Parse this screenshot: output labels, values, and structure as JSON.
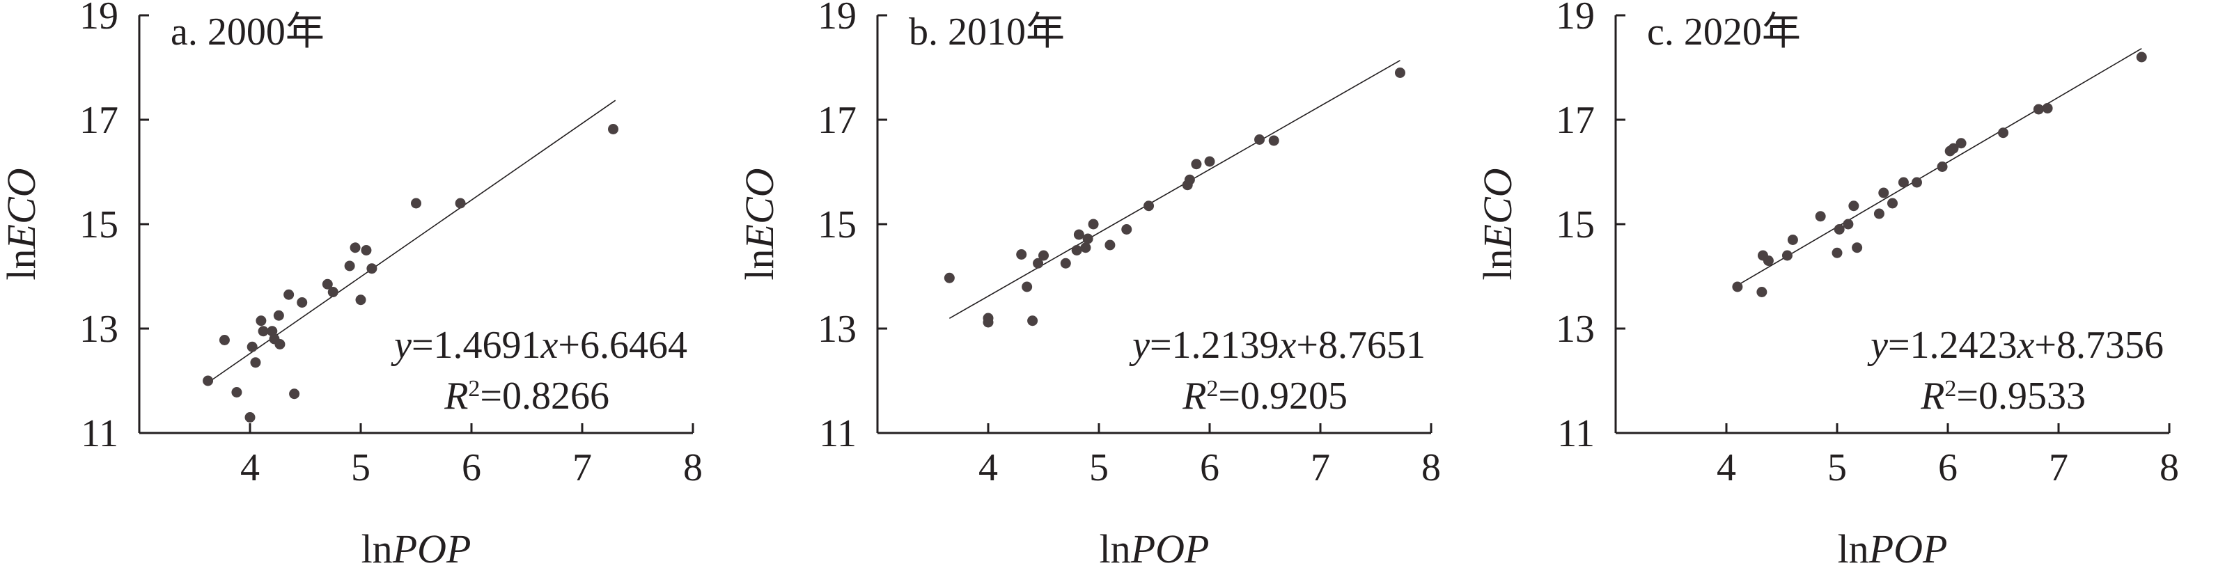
{
  "figure": {
    "axis_color": "#231f20",
    "point_color": "#4a4142",
    "line_color": "#231f20",
    "eq_operator": "=",
    "r2_label": "R",
    "r2_sup": "2"
  },
  "chart_data": [
    {
      "type": "scatter",
      "title": "a. 2000年",
      "xlabel_prefix": "ln",
      "xlabel_var": "POP",
      "ylabel_prefix": "ln",
      "ylabel_var": "ECO",
      "xlim": [
        3,
        8
      ],
      "ylim": [
        11,
        19
      ],
      "xticks": [
        4,
        5,
        6,
        7,
        8
      ],
      "yticks": [
        11,
        13,
        15,
        17,
        19
      ],
      "grid": false,
      "regression": {
        "slope": 1.4691,
        "intercept": 6.6464,
        "x_range": [
          3.6,
          7.3
        ]
      },
      "equation_y": "y",
      "equation_x": "x",
      "equation_slope": "1.4691",
      "equation_tail": "+6.6464",
      "r2_value": "0.8266",
      "points": [
        [
          3.62,
          12.0
        ],
        [
          3.77,
          12.78
        ],
        [
          3.88,
          11.78
        ],
        [
          4.0,
          11.3
        ],
        [
          4.02,
          12.65
        ],
        [
          4.05,
          12.35
        ],
        [
          4.1,
          13.15
        ],
        [
          4.12,
          12.95
        ],
        [
          4.2,
          12.95
        ],
        [
          4.22,
          12.8
        ],
        [
          4.26,
          13.25
        ],
        [
          4.27,
          12.7
        ],
        [
          4.35,
          13.65
        ],
        [
          4.4,
          11.75
        ],
        [
          4.47,
          13.5
        ],
        [
          4.7,
          13.85
        ],
        [
          4.75,
          13.7
        ],
        [
          4.9,
          14.2
        ],
        [
          4.95,
          14.55
        ],
        [
          5.0,
          13.55
        ],
        [
          5.05,
          14.5
        ],
        [
          5.1,
          14.15
        ],
        [
          5.5,
          15.4
        ],
        [
          5.9,
          15.4
        ],
        [
          7.28,
          16.82
        ]
      ]
    },
    {
      "type": "scatter",
      "title": "b. 2010年",
      "xlabel_prefix": "ln",
      "xlabel_var": "POP",
      "ylabel_prefix": "ln",
      "ylabel_var": "ECO",
      "xlim": [
        3,
        8
      ],
      "ylim": [
        11,
        19
      ],
      "xticks": [
        4,
        5,
        6,
        7,
        8
      ],
      "yticks": [
        11,
        13,
        15,
        17,
        19
      ],
      "grid": false,
      "regression": {
        "slope": 1.2139,
        "intercept": 8.7651,
        "x_range": [
          3.65,
          7.72
        ]
      },
      "equation_y": "y",
      "equation_x": "x",
      "equation_slope": "1.2139",
      "equation_tail": "+8.7651",
      "r2_value": "0.9205",
      "points": [
        [
          3.65,
          13.97
        ],
        [
          4.0,
          13.2
        ],
        [
          4.0,
          13.12
        ],
        [
          4.3,
          14.42
        ],
        [
          4.35,
          13.8
        ],
        [
          4.4,
          13.15
        ],
        [
          4.45,
          14.25
        ],
        [
          4.5,
          14.4
        ],
        [
          4.7,
          14.25
        ],
        [
          4.8,
          14.5
        ],
        [
          4.82,
          14.8
        ],
        [
          4.88,
          14.55
        ],
        [
          4.9,
          14.72
        ],
        [
          4.95,
          15.0
        ],
        [
          5.1,
          14.6
        ],
        [
          5.25,
          14.9
        ],
        [
          5.45,
          15.35
        ],
        [
          5.8,
          15.75
        ],
        [
          5.82,
          15.85
        ],
        [
          5.88,
          16.15
        ],
        [
          6.0,
          16.2
        ],
        [
          6.45,
          16.62
        ],
        [
          6.58,
          16.6
        ],
        [
          7.72,
          17.9
        ]
      ]
    },
    {
      "type": "scatter",
      "title": "c. 2020年",
      "xlabel_prefix": "ln",
      "xlabel_var": "POP",
      "ylabel_prefix": "ln",
      "ylabel_var": "ECO",
      "xlim": [
        3,
        8
      ],
      "ylim": [
        11,
        19
      ],
      "xticks": [
        4,
        5,
        6,
        7,
        8
      ],
      "yticks": [
        11,
        13,
        15,
        17,
        19
      ],
      "grid": false,
      "regression": {
        "slope": 1.2423,
        "intercept": 8.7356,
        "x_range": [
          4.1,
          7.75
        ]
      },
      "equation_y": "y",
      "equation_x": "x",
      "equation_slope": "1.2423",
      "equation_tail": "+8.7356",
      "r2_value": "0.9533",
      "points": [
        [
          4.1,
          13.8
        ],
        [
          4.32,
          13.7
        ],
        [
          4.33,
          14.4
        ],
        [
          4.38,
          14.3
        ],
        [
          4.55,
          14.4
        ],
        [
          4.6,
          14.7
        ],
        [
          4.85,
          15.15
        ],
        [
          5.0,
          14.45
        ],
        [
          5.02,
          14.9
        ],
        [
          5.1,
          15.0
        ],
        [
          5.15,
          15.35
        ],
        [
          5.18,
          14.55
        ],
        [
          5.38,
          15.2
        ],
        [
          5.42,
          15.6
        ],
        [
          5.5,
          15.4
        ],
        [
          5.6,
          15.8
        ],
        [
          5.72,
          15.8
        ],
        [
          5.95,
          16.1
        ],
        [
          6.02,
          16.4
        ],
        [
          6.05,
          16.45
        ],
        [
          6.12,
          16.55
        ],
        [
          6.5,
          16.75
        ],
        [
          6.82,
          17.2
        ],
        [
          6.9,
          17.22
        ],
        [
          7.75,
          18.2
        ]
      ]
    }
  ]
}
